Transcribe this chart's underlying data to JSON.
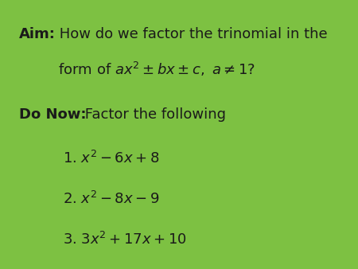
{
  "background_color": "#7dc142",
  "text_color": "#1a1a1a",
  "fig_width": 4.5,
  "fig_height": 3.38,
  "dpi": 100,
  "aim_bold": "Aim:",
  "aim_regular": " How do we factor the trinomial in the",
  "aim_line2": "form of $ax^2 \\pm bx \\pm c, a \\neq 1$?",
  "donow_bold": "Do Now:",
  "donow_regular": " Factor the following",
  "item1": "1. $x^2 - 6x + 8$",
  "item2": "2. $x^2 - 8x - 9$",
  "item3": "3. $3x^2 + 17x + 10$"
}
